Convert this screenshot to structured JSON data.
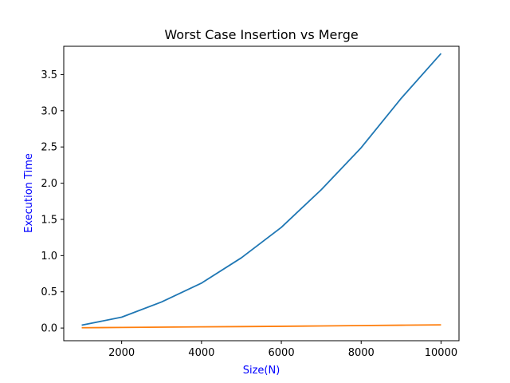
{
  "chart_data": {
    "type": "line",
    "title": "Worst Case Insertion vs Merge",
    "xlabel": "Size(N)",
    "ylabel": "Execution Time",
    "label_color": "#0000ff",
    "xlim": [
      550,
      10450
    ],
    "ylim": [
      -0.175,
      3.89
    ],
    "xticks": [
      2000,
      4000,
      6000,
      8000,
      10000
    ],
    "yticks": [
      0.0,
      0.5,
      1.0,
      1.5,
      2.0,
      2.5,
      3.0,
      3.5
    ],
    "xtick_labels": [
      "2000",
      "4000",
      "6000",
      "8000",
      "10000"
    ],
    "ytick_labels": [
      "0.0",
      "0.5",
      "1.0",
      "1.5",
      "2.0",
      "2.5",
      "3.0",
      "3.5"
    ],
    "grid": false,
    "series": [
      {
        "color": "#1f77b4",
        "x": [
          1000,
          2000,
          3000,
          4000,
          5000,
          6000,
          7000,
          8000,
          9000,
          10000
        ],
        "y": [
          0.04,
          0.15,
          0.36,
          0.62,
          0.97,
          1.39,
          1.91,
          2.49,
          3.17,
          3.79
        ]
      },
      {
        "color": "#ff7f0e",
        "x": [
          1000,
          2000,
          3000,
          4000,
          5000,
          6000,
          7000,
          8000,
          9000,
          10000
        ],
        "y": [
          0.004,
          0.008,
          0.012,
          0.016,
          0.02,
          0.024,
          0.029,
          0.034,
          0.039,
          0.044
        ]
      }
    ]
  }
}
